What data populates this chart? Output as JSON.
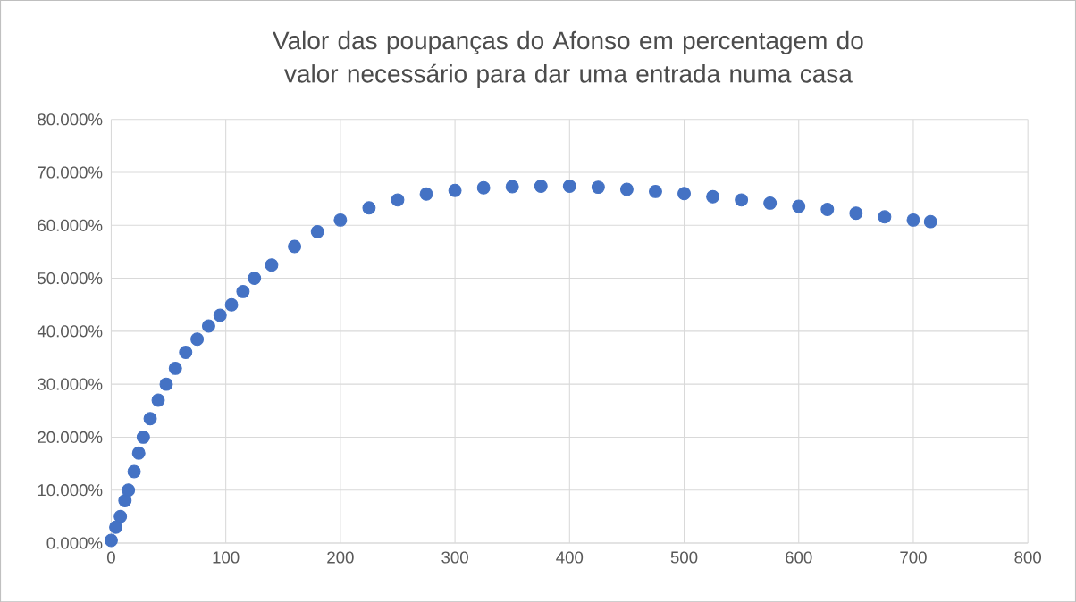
{
  "chart_data": {
    "type": "scatter",
    "title": "Valor das poupanças do Afonso em percentagem do valor necessário para dar uma entrada numa casa",
    "series": [
      {
        "color": "#4472c4",
        "x": [
          0,
          4,
          8,
          12,
          15,
          20,
          24,
          28,
          34,
          41,
          48,
          56,
          65,
          75,
          85,
          95,
          105,
          115,
          125,
          140,
          160,
          180,
          200,
          225,
          250,
          275,
          300,
          325,
          350,
          375,
          400,
          425,
          450,
          475,
          500,
          525,
          550,
          575,
          600,
          625,
          650,
          675,
          700,
          715
        ],
        "values": [
          0.5,
          3,
          5,
          8,
          10,
          13.5,
          17,
          20,
          23.5,
          27,
          30,
          33,
          36,
          38.5,
          41,
          43,
          45,
          47.5,
          50,
          52.5,
          56,
          58.8,
          61,
          63.3,
          64.8,
          65.9,
          66.6,
          67.1,
          67.3,
          67.4,
          67.4,
          67.2,
          66.8,
          66.4,
          66,
          65.4,
          64.8,
          64.2,
          63.6,
          63,
          62.3,
          61.6,
          61,
          60.7
        ]
      }
    ],
    "xlim": [
      0,
      800
    ],
    "xticks": [
      0,
      100,
      200,
      300,
      400,
      500,
      600,
      700,
      800
    ],
    "ylim": [
      0,
      80
    ],
    "yticks": [
      {
        "value": 0,
        "label": "0.000%"
      },
      {
        "value": 10,
        "label": "10.000%"
      },
      {
        "value": 20,
        "label": "20.000%"
      },
      {
        "value": 30,
        "label": "30.000%"
      },
      {
        "value": 40,
        "label": "40.000%"
      },
      {
        "value": 50,
        "label": "50.000%"
      },
      {
        "value": 60,
        "label": "60.000%"
      },
      {
        "value": 70,
        "label": "70.000%"
      },
      {
        "value": 80,
        "label": "80.000%"
      }
    ],
    "grid": true,
    "marker": "circle"
  }
}
